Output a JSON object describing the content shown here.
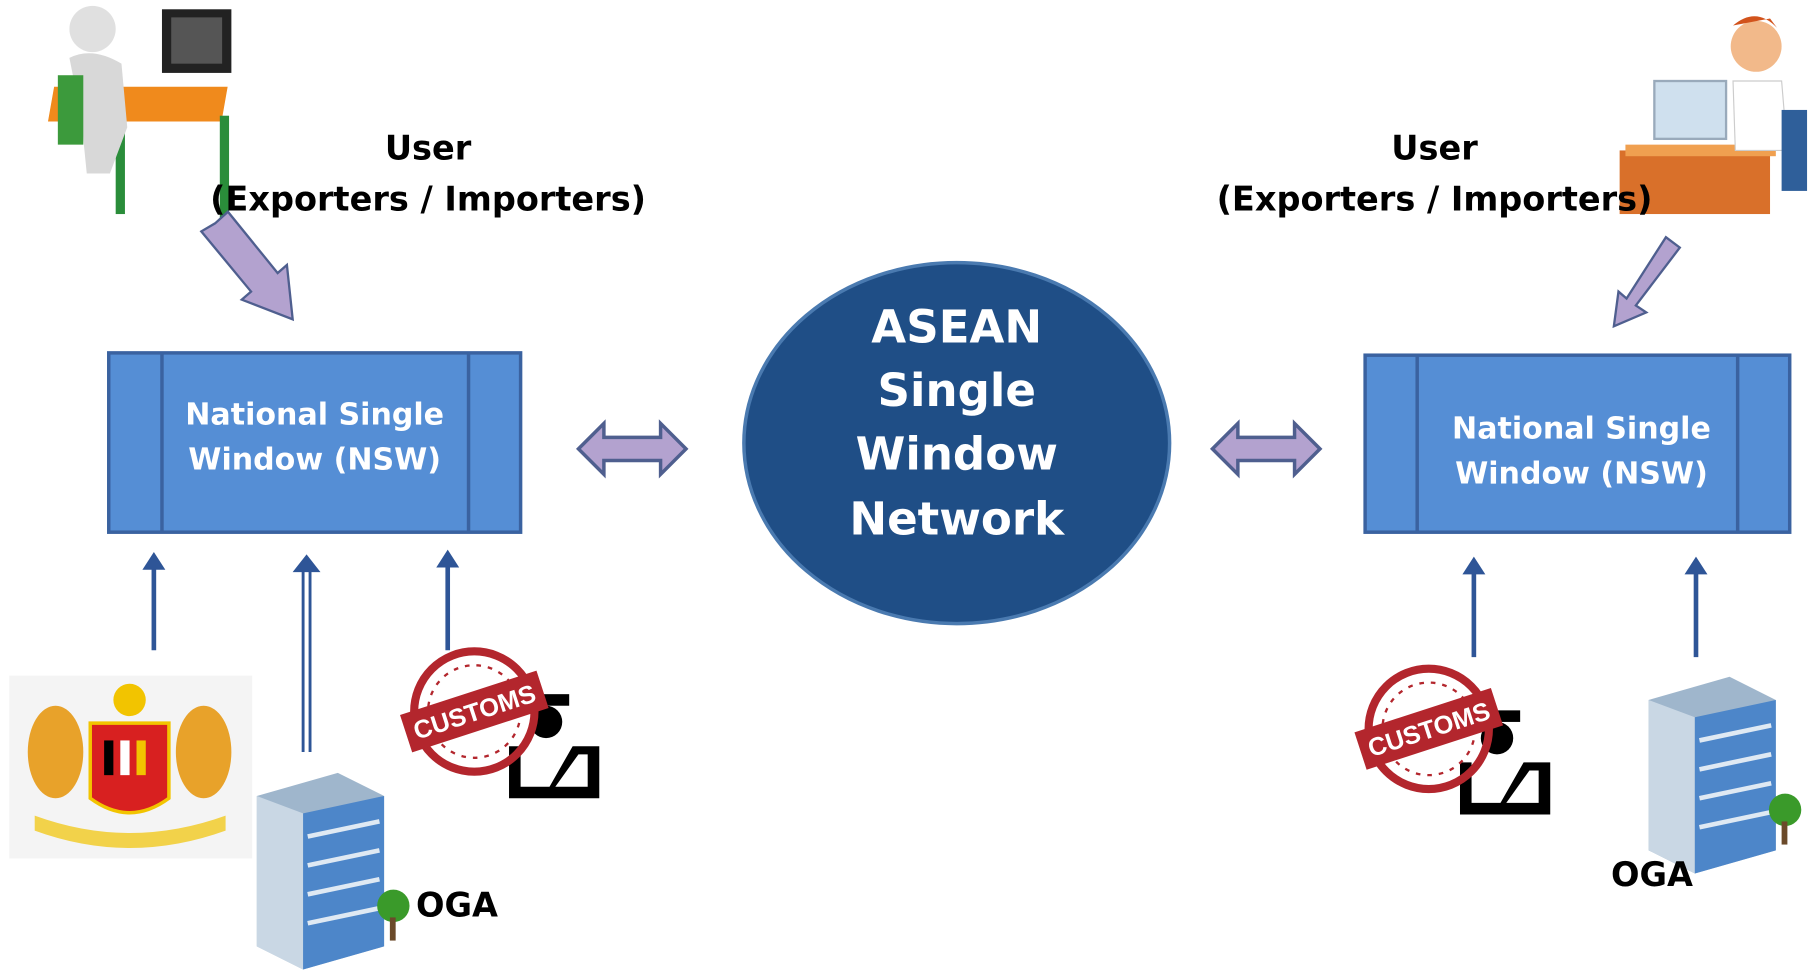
{
  "left_user": {
    "title": "User",
    "subtitle": "(Exporters / Importers)"
  },
  "right_user": {
    "title": "User",
    "subtitle": "(Exporters / Importers)"
  },
  "left_nsw": {
    "lines": [
      "National Single",
      "Window (NSW)"
    ]
  },
  "right_nsw": {
    "lines": [
      "National Single",
      "Window (NSW)"
    ]
  },
  "center": {
    "lines": [
      "ASEAN",
      "Single",
      "Window",
      "Network"
    ]
  },
  "left_agencies": {
    "customs_stamp": "CUSTOMS",
    "oga": "OGA"
  },
  "right_agencies": {
    "customs_stamp": "CUSTOMS",
    "oga": "OGA"
  }
}
